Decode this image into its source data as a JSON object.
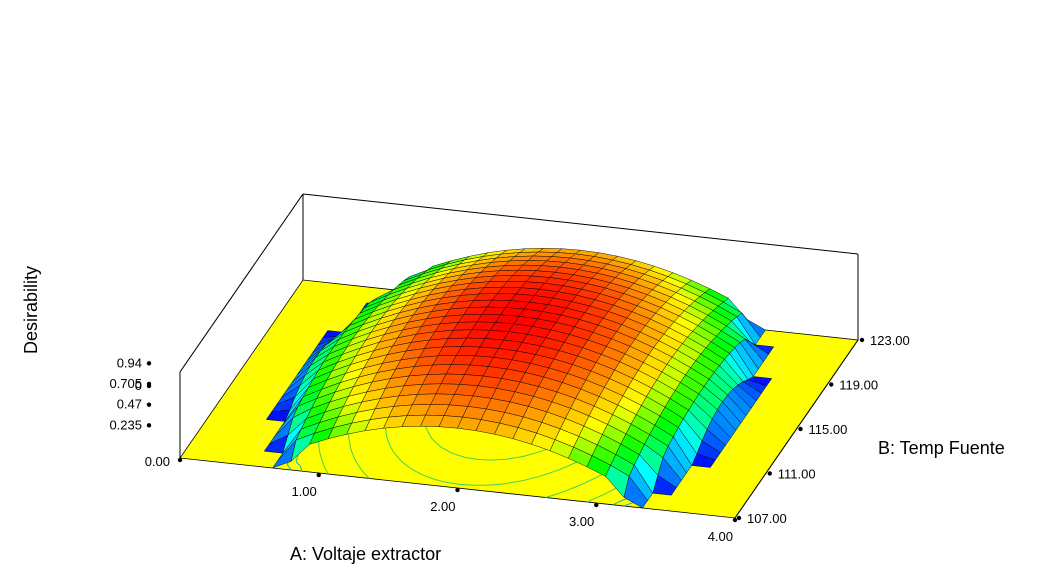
{
  "chart_data": {
    "type": "surface3d",
    "xlabel": "A: Voltaje extractor",
    "ylabel": "B: Temp Fuente",
    "zlabel": "Desirability",
    "x_ticks": [
      "1.00",
      "2.00",
      "3.00",
      "4.00"
    ],
    "y_ticks": [
      "107.00",
      "111.00",
      "115.00",
      "119.00",
      "123.00"
    ],
    "z_ticks": [
      "0.94",
      "0.705",
      "0.47",
      "0.235",
      "0"
    ],
    "floor_tick": "0.00",
    "xlim": [
      0,
      4
    ],
    "ylim": [
      107,
      123
    ],
    "zlim": [
      0,
      0.94
    ],
    "peak": {
      "x": 2.0,
      "y": 115.0,
      "z": 0.94
    },
    "floor_color": "#ffff00",
    "colormap": [
      "#0000ff",
      "#00ffff",
      "#00ff00",
      "#ffff00",
      "#ff8000",
      "#ff0000"
    ]
  }
}
